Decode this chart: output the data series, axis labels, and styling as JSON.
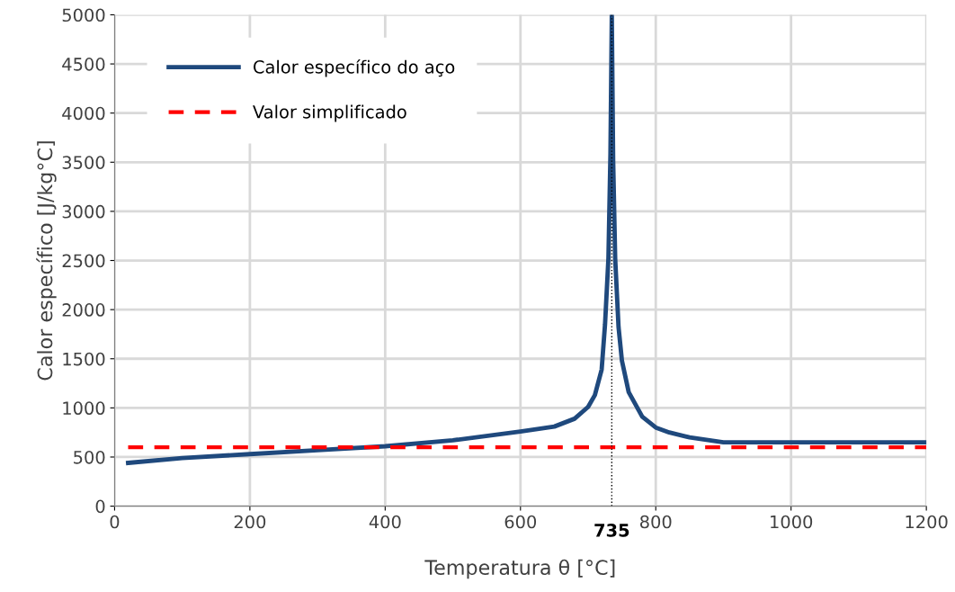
{
  "chart_data": {
    "type": "line",
    "xlabel": "Temperatura θ [°C]",
    "ylabel": "Calor específico [J/kg°C]",
    "xlim": [
      0,
      1200
    ],
    "xticks": [
      0,
      200,
      400,
      600,
      800,
      1000,
      1200
    ],
    "ylim": [
      0,
      5000
    ],
    "yticks": [
      0,
      500,
      1000,
      1500,
      2000,
      2500,
      3000,
      3500,
      4000,
      4500,
      5000
    ],
    "grid": true,
    "legend": "top left",
    "series": [
      {
        "name": "Calor específico do aço",
        "color": "#1f497d",
        "line_style": "solid",
        "x": [
          20,
          100,
          200,
          300,
          400,
          500,
          600,
          650,
          680,
          700,
          710,
          720,
          725,
          730,
          733,
          735,
          737,
          740,
          745,
          750,
          760,
          780,
          800,
          820,
          850,
          900,
          1000,
          1200
        ],
        "values": [
          440,
          490,
          530,
          570,
          610,
          670,
          760,
          810,
          890,
          1010,
          1130,
          1390,
          1850,
          2520,
          3590,
          5000,
          3520,
          2520,
          1820,
          1480,
          1160,
          910,
          800,
          750,
          700,
          650,
          650,
          650
        ]
      },
      {
        "name": "Valor simplificado",
        "color": "#ff0000",
        "line_style": "dashed",
        "x": [
          20,
          1200
        ],
        "values": [
          600,
          600
        ]
      }
    ],
    "ref_lines": [
      {
        "axis": "x",
        "value": 735,
        "label": "735",
        "color": "#000000",
        "line_style": "dotted"
      }
    ]
  }
}
